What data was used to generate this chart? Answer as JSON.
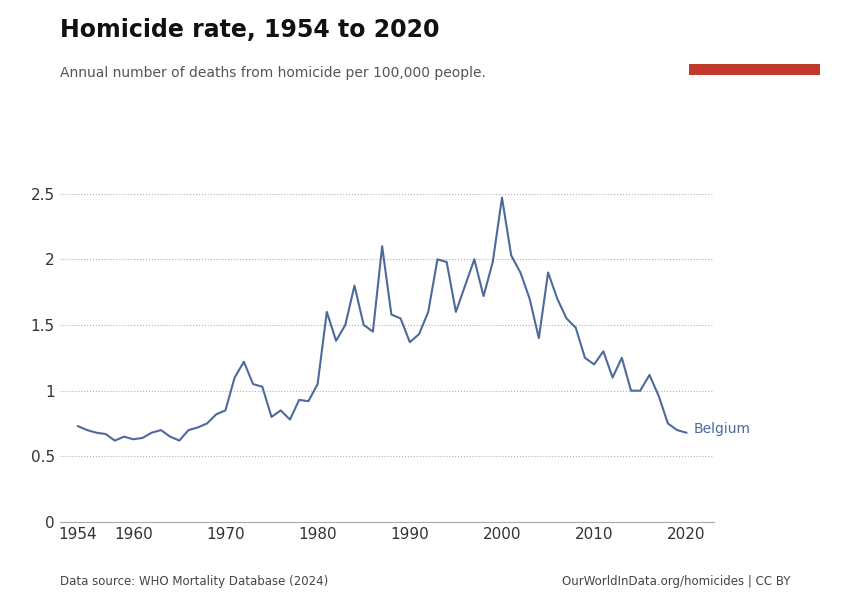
{
  "title": "Homicide rate, 1954 to 2020",
  "subtitle": "Annual number of deaths from homicide per 100,000 people.",
  "data_source": "Data source: WHO Mortality Database (2024)",
  "url_credit": "OurWorldInData.org/homicides | CC BY",
  "line_color": "#4C6A9C",
  "label": "Belgium",
  "years": [
    1954,
    1955,
    1956,
    1957,
    1958,
    1959,
    1960,
    1961,
    1962,
    1963,
    1964,
    1965,
    1966,
    1967,
    1968,
    1969,
    1970,
    1971,
    1972,
    1973,
    1974,
    1975,
    1976,
    1977,
    1978,
    1979,
    1980,
    1981,
    1982,
    1983,
    1984,
    1985,
    1986,
    1987,
    1988,
    1989,
    1990,
    1991,
    1992,
    1993,
    1994,
    1995,
    1996,
    1997,
    1998,
    1999,
    2000,
    2001,
    2002,
    2003,
    2004,
    2005,
    2006,
    2007,
    2008,
    2009,
    2010,
    2011,
    2012,
    2013,
    2014,
    2015,
    2016,
    2017,
    2018,
    2019,
    2020
  ],
  "values": [
    0.73,
    0.7,
    0.68,
    0.67,
    0.62,
    0.65,
    0.63,
    0.64,
    0.68,
    0.7,
    0.65,
    0.62,
    0.7,
    0.72,
    0.75,
    0.82,
    0.85,
    1.1,
    1.22,
    1.05,
    1.03,
    0.8,
    0.85,
    0.78,
    0.93,
    0.92,
    1.05,
    1.6,
    1.38,
    1.5,
    1.8,
    1.5,
    1.45,
    2.1,
    1.58,
    1.55,
    1.37,
    1.43,
    1.6,
    2.0,
    1.98,
    1.6,
    1.8,
    2.0,
    1.72,
    1.98,
    2.47,
    2.03,
    1.9,
    1.7,
    1.4,
    1.9,
    1.7,
    1.55,
    1.48,
    1.25,
    1.2,
    1.3,
    1.1,
    1.25,
    1.0,
    1.0,
    1.12,
    0.96,
    0.75,
    0.7,
    0.68
  ],
  "ylim": [
    0,
    2.65
  ],
  "yticks": [
    0,
    0.5,
    1.0,
    1.5,
    2.0,
    2.5
  ],
  "xlim": [
    1952,
    2023
  ],
  "xticks": [
    1954,
    1960,
    1970,
    1980,
    1990,
    2000,
    2010,
    2020
  ],
  "logo_bg_color": "#1a3a5c",
  "logo_red_color": "#c0392b",
  "background_color": "#ffffff",
  "grid_color": "#b0b0b0"
}
